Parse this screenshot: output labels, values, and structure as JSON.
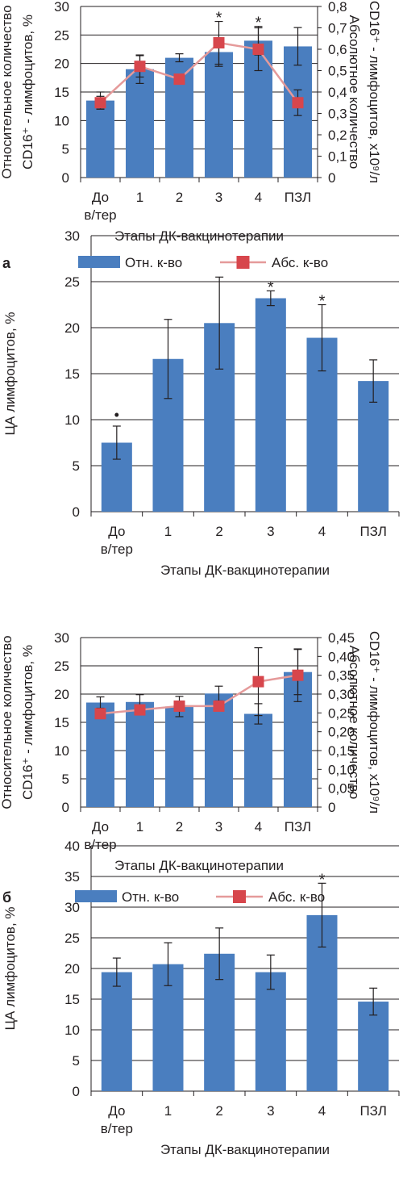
{
  "colors": {
    "bar": "#4a7ebf",
    "line": "#e59a9a",
    "marker": "#d7464c",
    "error": "#231f20",
    "grid": "#231f20",
    "axis": "#231f20"
  },
  "panel_labels": [
    "а",
    "б"
  ],
  "legend": {
    "bar_label": "Отн. к-во",
    "line_label": "Абс. к-во"
  },
  "chart_data": [
    {
      "type": "bar",
      "categories": [
        "До в/тер",
        "1",
        "2",
        "3",
        "4",
        "ПЗЛ"
      ],
      "xlabel": "Этапы ДК-вакцинотерапии",
      "ylabel": [
        "Относительное количество",
        "CD16⁺ - лимфоцитов, %"
      ],
      "ylim": [
        0,
        30
      ],
      "yticks": [
        0,
        5,
        10,
        15,
        20,
        25,
        30
      ],
      "series": [
        {
          "name": "Отн. к-во",
          "type": "bar",
          "values": [
            13.5,
            19,
            21,
            22,
            24,
            23
          ],
          "errors": [
            1.5,
            2.5,
            0.7,
            2.5,
            2.5,
            3.3
          ]
        },
        {
          "name": "Абс. к-во",
          "type": "line",
          "axis": "right",
          "values": [
            0.35,
            0.52,
            0.46,
            0.63,
            0.6,
            0.35
          ],
          "errors": [
            0.03,
            0.05,
            0,
            0.1,
            0.1,
            0.06
          ]
        }
      ],
      "y2label": [
        "Абсолютное количество",
        "CD16⁺ - лимфоцитов, х10⁹/л"
      ],
      "y2lim": [
        0,
        0.8
      ],
      "y2ticks": [
        "0",
        "0,1",
        "0,2",
        "0,3",
        "0,4",
        "0,5",
        "0,6",
        "0,7",
        "0,8"
      ],
      "annotations": [
        {
          "category": "3",
          "text": "*"
        },
        {
          "category": "4",
          "text": "*"
        }
      ],
      "grid": true,
      "legend_position": "bottom"
    },
    {
      "type": "bar",
      "categories": [
        "До в/тер",
        "1",
        "2",
        "3",
        "4",
        "ПЗЛ"
      ],
      "xlabel": "Этапы ДК-вакцинотерапии",
      "ylabel": [
        "ЦА лимфоцитов, %"
      ],
      "ylim": [
        0,
        30
      ],
      "yticks": [
        0,
        5,
        10,
        15,
        20,
        25,
        30
      ],
      "series": [
        {
          "name": "",
          "type": "bar",
          "values": [
            7.5,
            16.6,
            20.5,
            23.2,
            18.9,
            14.2
          ],
          "errors": [
            1.8,
            4.3,
            5,
            0.8,
            3.6,
            2.3
          ]
        }
      ],
      "annotations": [
        {
          "category": "До в/тер",
          "text": "•"
        },
        {
          "category": "3",
          "text": "*"
        },
        {
          "category": "4",
          "text": "*"
        }
      ],
      "grid": true
    },
    {
      "type": "bar",
      "categories": [
        "До в/тер",
        "1",
        "2",
        "3",
        "4",
        "ПЗЛ"
      ],
      "xlabel": "Этапы ДК-вакцинотерапии",
      "ylabel": [
        "Относительное количество",
        "CD16⁺ - лимфоцитов, %"
      ],
      "ylim": [
        0,
        30
      ],
      "yticks": [
        0,
        5,
        10,
        15,
        20,
        25,
        30
      ],
      "series": [
        {
          "name": "Отн. к-во",
          "type": "bar",
          "values": [
            18.5,
            18.6,
            17.8,
            20.1,
            16.5,
            23.9
          ],
          "errors": [
            1,
            1.3,
            1.8,
            1.3,
            1.8,
            4
          ]
        },
        {
          "name": "Абс. к-во",
          "type": "line",
          "axis": "right",
          "values": [
            0.248,
            0.258,
            0.268,
            0.268,
            0.333,
            0.35
          ],
          "errors": [
            0.012,
            0.01,
            0.012,
            0.012,
            0.09,
            0.07
          ]
        }
      ],
      "y2label": [
        "Абсолютное количество",
        "CD16⁺ - лимфоцитов, х10⁹/л"
      ],
      "y2lim": [
        0,
        0.45
      ],
      "y2ticks": [
        "0",
        "0,05",
        "0,10",
        "0,15",
        "0,20",
        "0,25",
        "0,30",
        "0,35",
        "0,40",
        "0,45"
      ],
      "grid": true,
      "legend_position": "bottom"
    },
    {
      "type": "bar",
      "categories": [
        "До в/тер",
        "1",
        "2",
        "3",
        "4",
        "ПЗЛ"
      ],
      "xlabel": "Этапы ДК-вакцинотерапии",
      "ylabel": [
        "ЦА лимфоцитов, %"
      ],
      "ylim": [
        0,
        40
      ],
      "yticks": [
        0,
        5,
        10,
        15,
        20,
        25,
        30,
        35,
        40
      ],
      "series": [
        {
          "name": "",
          "type": "bar",
          "values": [
            19.4,
            20.7,
            22.4,
            19.4,
            28.7,
            14.6
          ],
          "errors": [
            2.3,
            3.5,
            4.2,
            2.8,
            5.2,
            2.2
          ]
        }
      ],
      "annotations": [
        {
          "category": "4",
          "text": "*"
        }
      ],
      "grid": true
    }
  ]
}
